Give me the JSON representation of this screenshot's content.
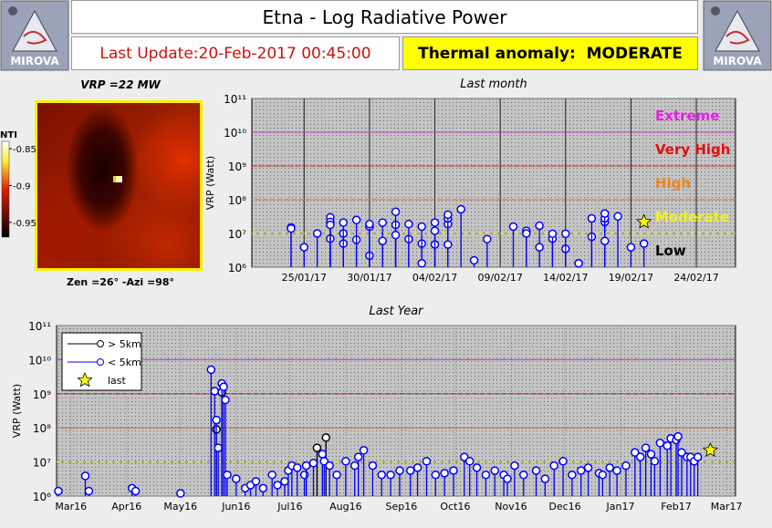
{
  "header": {
    "logo_text": "MIROVA",
    "title": "Etna - Log Radiative Power",
    "last_update": "Last Update:20-Feb-2017 00:45:00",
    "anomaly": "Thermal anomaly:  MODERATE"
  },
  "thermal_image": {
    "vrp": "VRP =22 MW",
    "geometry": "Zen =26° -Azi =98°",
    "colorbar": {
      "label": "NTI",
      "lim": [
        -0.97,
        -0.84
      ],
      "ticks": [
        -0.85,
        -0.9,
        -0.95
      ]
    }
  },
  "chart_data": [
    {
      "type": "stem",
      "title": "Last month",
      "ylabel": "VRP (Watt)",
      "log_scale": true,
      "grid": true,
      "xlim": [
        "2017-01-21",
        "2017-02-27"
      ],
      "xticks": [
        {
          "value": "2017-01-25",
          "label": "25/01/17"
        },
        {
          "value": "2017-01-30",
          "label": "30/01/17"
        },
        {
          "value": "2017-02-04",
          "label": "04/02/17"
        },
        {
          "value": "2017-02-09",
          "label": "09/02/17"
        },
        {
          "value": "2017-02-14",
          "label": "14/02/17"
        },
        {
          "value": "2017-02-19",
          "label": "19/02/17"
        },
        {
          "value": "2017-02-24",
          "label": "24/02/17"
        }
      ],
      "ylim": [
        1000000.0,
        100000000000.0
      ],
      "yticks": [
        {
          "value": 1000000.0,
          "label": "10⁶"
        },
        {
          "value": 10000000.0,
          "label": "10⁷"
        },
        {
          "value": 100000000.0,
          "label": "10⁸"
        },
        {
          "value": 1000000000.0,
          "label": "10⁹"
        },
        {
          "value": 10000000000.0,
          "label": "10¹⁰"
        },
        {
          "value": 100000000000.0,
          "label": "10¹¹"
        }
      ],
      "levels": [
        {
          "label": "Extreme",
          "value": 10000000000.0,
          "color": "#e81ee8"
        },
        {
          "label": "Very High",
          "value": 1000000000.0,
          "color": "#e01010"
        },
        {
          "label": "High",
          "value": 100000000.0,
          "color": "#f08020"
        },
        {
          "label": "Moderate",
          "value": 10000000.0,
          "color": "#f0f020"
        },
        {
          "label": "Low",
          "color": "#000000"
        }
      ],
      "series": [
        {
          "color": "#0000ff",
          "marker": "circle",
          "x": [
            "2017-01-24",
            "2017-01-24",
            "2017-01-25",
            "2017-01-26",
            "2017-01-27",
            "2017-01-27",
            "2017-01-27",
            "2017-01-27",
            "2017-01-28",
            "2017-01-28",
            "2017-01-28",
            "2017-01-29",
            "2017-01-29",
            "2017-01-30",
            "2017-01-30",
            "2017-01-30",
            "2017-01-30",
            "2017-01-31",
            "2017-01-31",
            "2017-02-01",
            "2017-02-01",
            "2017-02-01",
            "2017-02-02",
            "2017-02-02",
            "2017-02-03",
            "2017-02-03",
            "2017-02-03",
            "2017-02-04",
            "2017-02-04",
            "2017-02-04",
            "2017-02-05",
            "2017-02-05",
            "2017-02-05",
            "2017-02-05",
            "2017-02-06",
            "2017-02-07",
            "2017-02-08",
            "2017-02-10",
            "2017-02-11",
            "2017-02-11",
            "2017-02-12",
            "2017-02-12",
            "2017-02-13",
            "2017-02-13",
            "2017-02-14",
            "2017-02-14",
            "2017-02-15",
            "2017-02-15",
            "2017-02-16",
            "2017-02-16",
            "2017-02-17",
            "2017-02-17",
            "2017-02-17",
            "2017-02-17",
            "2017-02-18",
            "2017-02-19",
            "2017-02-20"
          ],
          "values": [
            15000000.0,
            14000000.0,
            3900000.0,
            10000000.0,
            7000000.0,
            30000000.0,
            22000000.0,
            18000000.0,
            10000000.0,
            5000000.0,
            21000000.0,
            6500000.0,
            25000000.0,
            17000000.0,
            2200000.0,
            16000000.0,
            19000000.0,
            21000000.0,
            6000000.0,
            18000000.0,
            44000000.0,
            9000000.0,
            6800000.0,
            19000000.0,
            5000000.0,
            16000000.0,
            1300000.0,
            21000000.0,
            4700000.0,
            12000000.0,
            19000000.0,
            28000000.0,
            36000000.0,
            4700000.0,
            52000000.0,
            1600000.0,
            6800000.0,
            16000000.0,
            12000000.0,
            10000000.0,
            17000000.0,
            3900000.0,
            7000000.0,
            9800000.0,
            3500000.0,
            9800000.0,
            1300000.0,
            1300000.0,
            8000000.0,
            28000000.0,
            22000000.0,
            28000000.0,
            39000000.0,
            6000000.0,
            32000000.0,
            3900000.0,
            5000000.0
          ]
        },
        {
          "color": "#ffff00",
          "marker": "star",
          "x": [
            "2017-02-20"
          ],
          "values": [
            22000000.0
          ]
        }
      ]
    },
    {
      "type": "stem",
      "title": "Last Year",
      "ylabel": "VRP (Watt)",
      "log_scale": true,
      "grid": true,
      "legend": "upper left",
      "xlim": [
        "2016-02-22",
        "2017-03-06"
      ],
      "xticks": [
        {
          "value": "2016-03-01",
          "label": "Mar16"
        },
        {
          "value": "2016-04-01",
          "label": "Apr16"
        },
        {
          "value": "2016-05-01",
          "label": "May16"
        },
        {
          "value": "2016-06-01",
          "label": "Jun16"
        },
        {
          "value": "2016-07-01",
          "label": "Jul16"
        },
        {
          "value": "2016-08-01",
          "label": "Aug16"
        },
        {
          "value": "2016-09-01",
          "label": "Sep16"
        },
        {
          "value": "2016-10-01",
          "label": "Oct16"
        },
        {
          "value": "2016-11-01",
          "label": "Nov16"
        },
        {
          "value": "2016-12-01",
          "label": "Dec16"
        },
        {
          "value": "2017-01-01",
          "label": "Jan17"
        },
        {
          "value": "2017-02-01",
          "label": "Feb17"
        },
        {
          "value": "2017-03-01",
          "label": "Mar17"
        }
      ],
      "ylim": [
        1000000.0,
        100000000000.0
      ],
      "yticks": [
        {
          "value": 1000000.0,
          "label": "10⁶"
        },
        {
          "value": 10000000.0,
          "label": "10⁷"
        },
        {
          "value": 100000000.0,
          "label": "10⁸"
        },
        {
          "value": 1000000000.0,
          "label": "10⁹"
        },
        {
          "value": 10000000000.0,
          "label": "10¹⁰"
        },
        {
          "value": 100000000000.0,
          "label": "10¹¹"
        }
      ],
      "levels": [
        {
          "value": 10000000000.0,
          "color": "#e81ee8"
        },
        {
          "value": 1000000000.0,
          "color": "#e01010"
        },
        {
          "value": 100000000.0,
          "color": "#f08020"
        },
        {
          "value": 10000000.0,
          "color": "#f0f020"
        }
      ],
      "series": [
        {
          "name": "> 5km",
          "color": "#000000",
          "marker": "circle",
          "x": [
            "2016-05-21",
            "2016-05-24",
            "2016-07-16",
            "2016-07-21"
          ],
          "values": [
            90000000.0,
            1100000000.0,
            26000000.0,
            52000000.0
          ]
        },
        {
          "name": "< 5km",
          "color": "#0000ff",
          "marker": "circle",
          "x": [
            "2016-02-23",
            "2016-03-09",
            "2016-03-11",
            "2016-04-04",
            "2016-04-06",
            "2016-05-01",
            "2016-05-18",
            "2016-05-20",
            "2016-05-21",
            "2016-05-22",
            "2016-05-24",
            "2016-05-25",
            "2016-05-26",
            "2016-05-27",
            "2016-06-01",
            "2016-06-06",
            "2016-06-09",
            "2016-06-12",
            "2016-06-16",
            "2016-06-21",
            "2016-06-24",
            "2016-06-28",
            "2016-06-30",
            "2016-07-02",
            "2016-07-05",
            "2016-07-09",
            "2016-07-10",
            "2016-07-14",
            "2016-07-19",
            "2016-07-20",
            "2016-07-23",
            "2016-07-27",
            "2016-08-01",
            "2016-08-06",
            "2016-08-08",
            "2016-08-11",
            "2016-08-16",
            "2016-08-21",
            "2016-08-26",
            "2016-08-31",
            "2016-09-06",
            "2016-09-10",
            "2016-09-15",
            "2016-09-20",
            "2016-09-25",
            "2016-09-30",
            "2016-10-06",
            "2016-10-09",
            "2016-10-13",
            "2016-10-18",
            "2016-10-23",
            "2016-10-28",
            "2016-10-30",
            "2016-11-03",
            "2016-11-08",
            "2016-11-15",
            "2016-11-20",
            "2016-11-25",
            "2016-11-30",
            "2016-12-05",
            "2016-12-10",
            "2016-12-14",
            "2016-12-20",
            "2016-12-22",
            "2016-12-26",
            "2016-12-30",
            "2017-01-04",
            "2017-01-09",
            "2017-01-12",
            "2017-01-15",
            "2017-01-18",
            "2017-01-20",
            "2017-01-23",
            "2017-01-27",
            "2017-01-29",
            "2017-02-01",
            "2017-02-02",
            "2017-02-04",
            "2017-02-07",
            "2017-02-09",
            "2017-02-11",
            "2017-02-13"
          ],
          "values": [
            1400000.0,
            3900000.0,
            1400000.0,
            1700000.0,
            1400000.0,
            1200000.0,
            5100000000.0,
            1200000000.0,
            170000000.0,
            26000000.0,
            2000000000.0,
            1600000000.0,
            660000000.0,
            4200000.0,
            3200000.0,
            1700000.0,
            2100000.0,
            2700000.0,
            1700000.0,
            4200000.0,
            2100000.0,
            2700000.0,
            5600000.0,
            7800000.0,
            6800000.0,
            4200000.0,
            7800000.0,
            9300000.0,
            17000000.0,
            10500000.0,
            7800000.0,
            4200000.0,
            10500000.0,
            7800000.0,
            14000000.0,
            22000000.0,
            7800000.0,
            4200000.0,
            4200000.0,
            5600000.0,
            5600000.0,
            6800000.0,
            10500000.0,
            4200000.0,
            4700000.0,
            5600000.0,
            14000000.0,
            10500000.0,
            6800000.0,
            4200000.0,
            5600000.0,
            4200000.0,
            3200000.0,
            7800000.0,
            4200000.0,
            5600000.0,
            3200000.0,
            7800000.0,
            10500000.0,
            4200000.0,
            5600000.0,
            6800000.0,
            4700000.0,
            4200000.0,
            6800000.0,
            5600000.0,
            7800000.0,
            19000000.0,
            14000000.0,
            26000000.0,
            17000000.0,
            10500000.0,
            36000000.0,
            30000000.0,
            49000000.0,
            44000000.0,
            56000000.0,
            19000000.0,
            14000000.0,
            14000000.0,
            10500000.0,
            14000000.0
          ]
        },
        {
          "name": "last",
          "color": "#ffff00",
          "marker": "star",
          "x": [
            "2017-02-20"
          ],
          "values": [
            22000000.0
          ]
        }
      ]
    }
  ]
}
